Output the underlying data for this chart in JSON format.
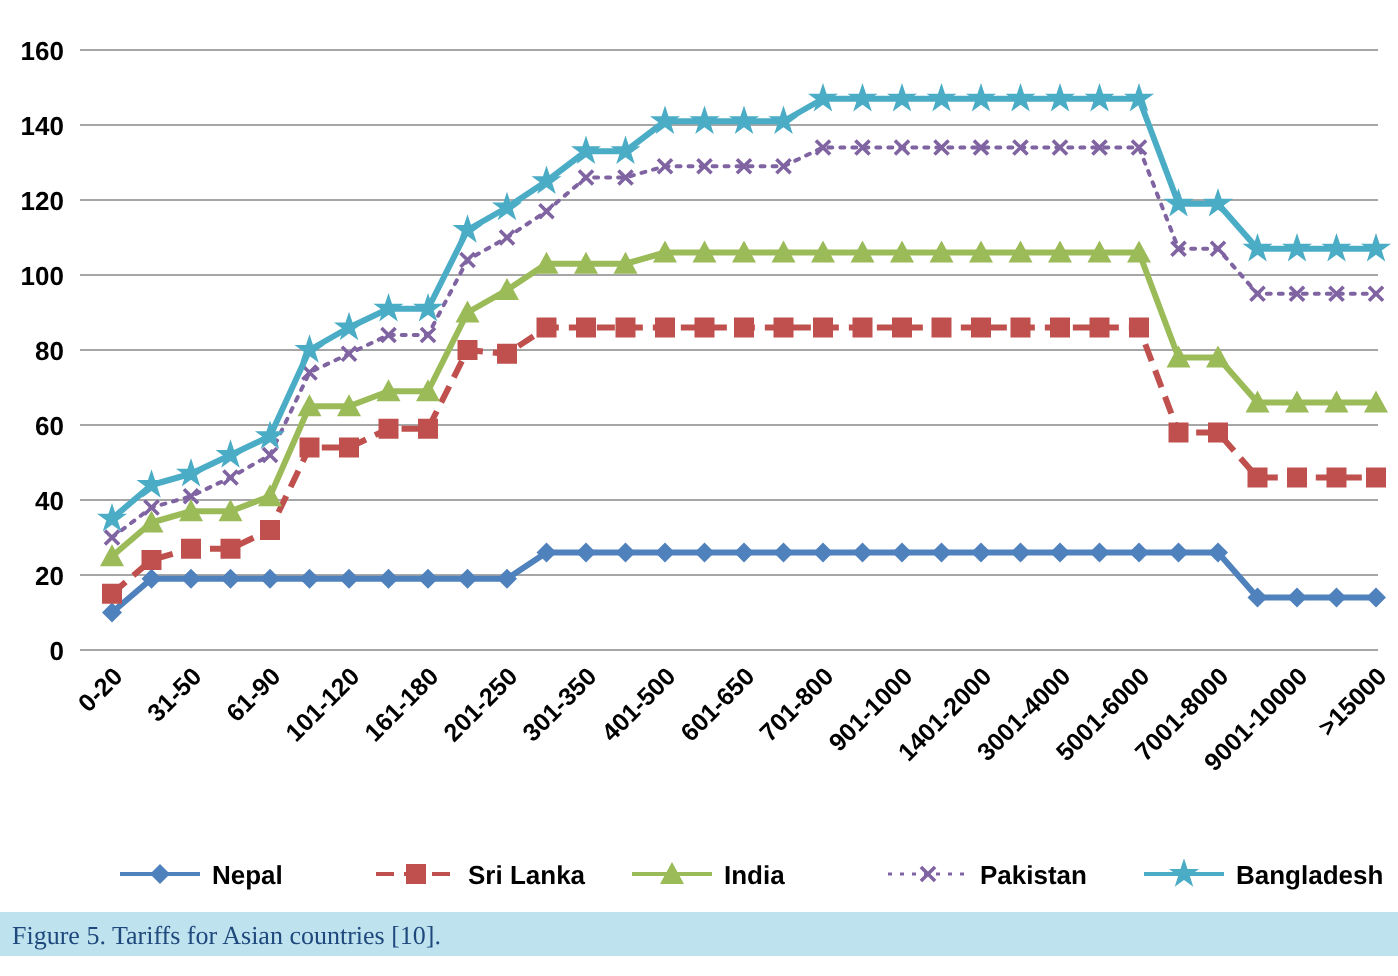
{
  "chart_data": {
    "type": "line",
    "categories": [
      "0-20",
      null,
      "31-50",
      null,
      "61-90",
      null,
      "101-120",
      null,
      "161-180",
      null,
      "201-250",
      null,
      "301-350",
      null,
      "401-500",
      null,
      "601-650",
      null,
      "701-800",
      null,
      "901-1000",
      null,
      "1401-2000",
      null,
      "3001-4000",
      null,
      "5001-6000",
      null,
      "7001-8000",
      null,
      "9001-10000",
      null,
      ">15000"
    ],
    "series": [
      {
        "name": "Nepal",
        "color": "#4f81bd",
        "marker": "diamond",
        "line_style": "solid",
        "values": [
          10,
          19,
          19,
          19,
          19,
          19,
          19,
          19,
          19,
          19,
          19,
          26,
          26,
          26,
          26,
          26,
          26,
          26,
          26,
          26,
          26,
          26,
          26,
          26,
          26,
          26,
          26,
          26,
          26,
          14,
          14,
          14,
          14
        ]
      },
      {
        "name": "Sri Lanka",
        "color": "#c0504d",
        "marker": "square",
        "line_style": "dashed",
        "values": [
          15,
          24,
          27,
          27,
          32,
          54,
          54,
          59,
          59,
          80,
          79,
          86,
          86,
          86,
          86,
          86,
          86,
          86,
          86,
          86,
          86,
          86,
          86,
          86,
          86,
          86,
          86,
          58,
          58,
          46,
          46,
          46,
          46
        ]
      },
      {
        "name": "India",
        "color": "#9bbb59",
        "marker": "triangle",
        "line_style": "solid",
        "values": [
          25,
          34,
          37,
          37,
          41,
          65,
          65,
          69,
          69,
          90,
          96,
          103,
          103,
          103,
          106,
          106,
          106,
          106,
          106,
          106,
          106,
          106,
          106,
          106,
          106,
          106,
          106,
          78,
          78,
          66,
          66,
          66,
          66
        ]
      },
      {
        "name": "Pakistan",
        "color": "#8064a2",
        "marker": "cross",
        "line_style": "dotted",
        "values": [
          30,
          38,
          41,
          46,
          52,
          74,
          79,
          84,
          84,
          104,
          110,
          117,
          126,
          126,
          129,
          129,
          129,
          129,
          134,
          134,
          134,
          134,
          134,
          134,
          134,
          134,
          134,
          107,
          107,
          95,
          95,
          95,
          95
        ]
      },
      {
        "name": "Bangladesh",
        "color": "#4bacc6",
        "marker": "star",
        "line_style": "solid",
        "values": [
          35,
          44,
          47,
          52,
          57,
          80,
          86,
          91,
          91,
          112,
          118,
          125,
          133,
          133,
          141,
          141,
          141,
          141,
          147,
          147,
          147,
          147,
          147,
          147,
          147,
          147,
          147,
          119,
          119,
          107,
          107,
          107,
          107
        ]
      }
    ],
    "ylim": [
      0,
      160
    ],
    "yticks": [
      0,
      20,
      40,
      60,
      80,
      100,
      120,
      140,
      160
    ],
    "grid": "y",
    "legend": "bottom",
    "annotations": [
      "Figure 5. Tariffs for Asian countries [10]."
    ]
  }
}
